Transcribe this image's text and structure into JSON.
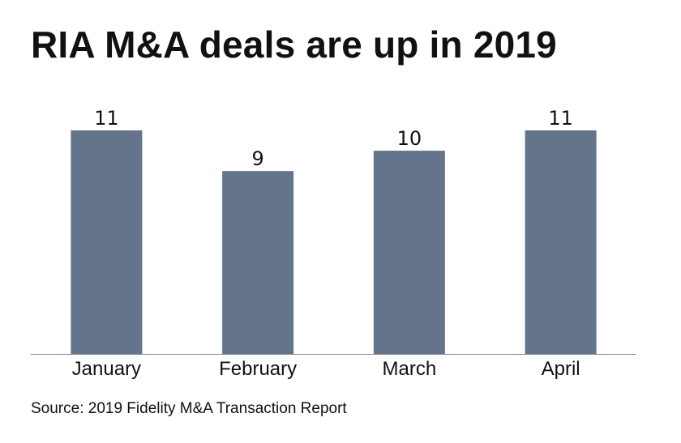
{
  "chart_data": {
    "type": "bar",
    "title": "RIA M&A deals are up in 2019",
    "categories": [
      "January",
      "February",
      "March",
      "April"
    ],
    "values": [
      11,
      9,
      10,
      11
    ],
    "data_labels": [
      "11",
      "9",
      "10",
      "11"
    ],
    "ylim": [
      0,
      11
    ],
    "grid": false,
    "legend": "none",
    "bar_color": "#64748a",
    "axis_color": "#888888",
    "source": "Source: 2019 Fidelity M&A Transaction Report"
  }
}
